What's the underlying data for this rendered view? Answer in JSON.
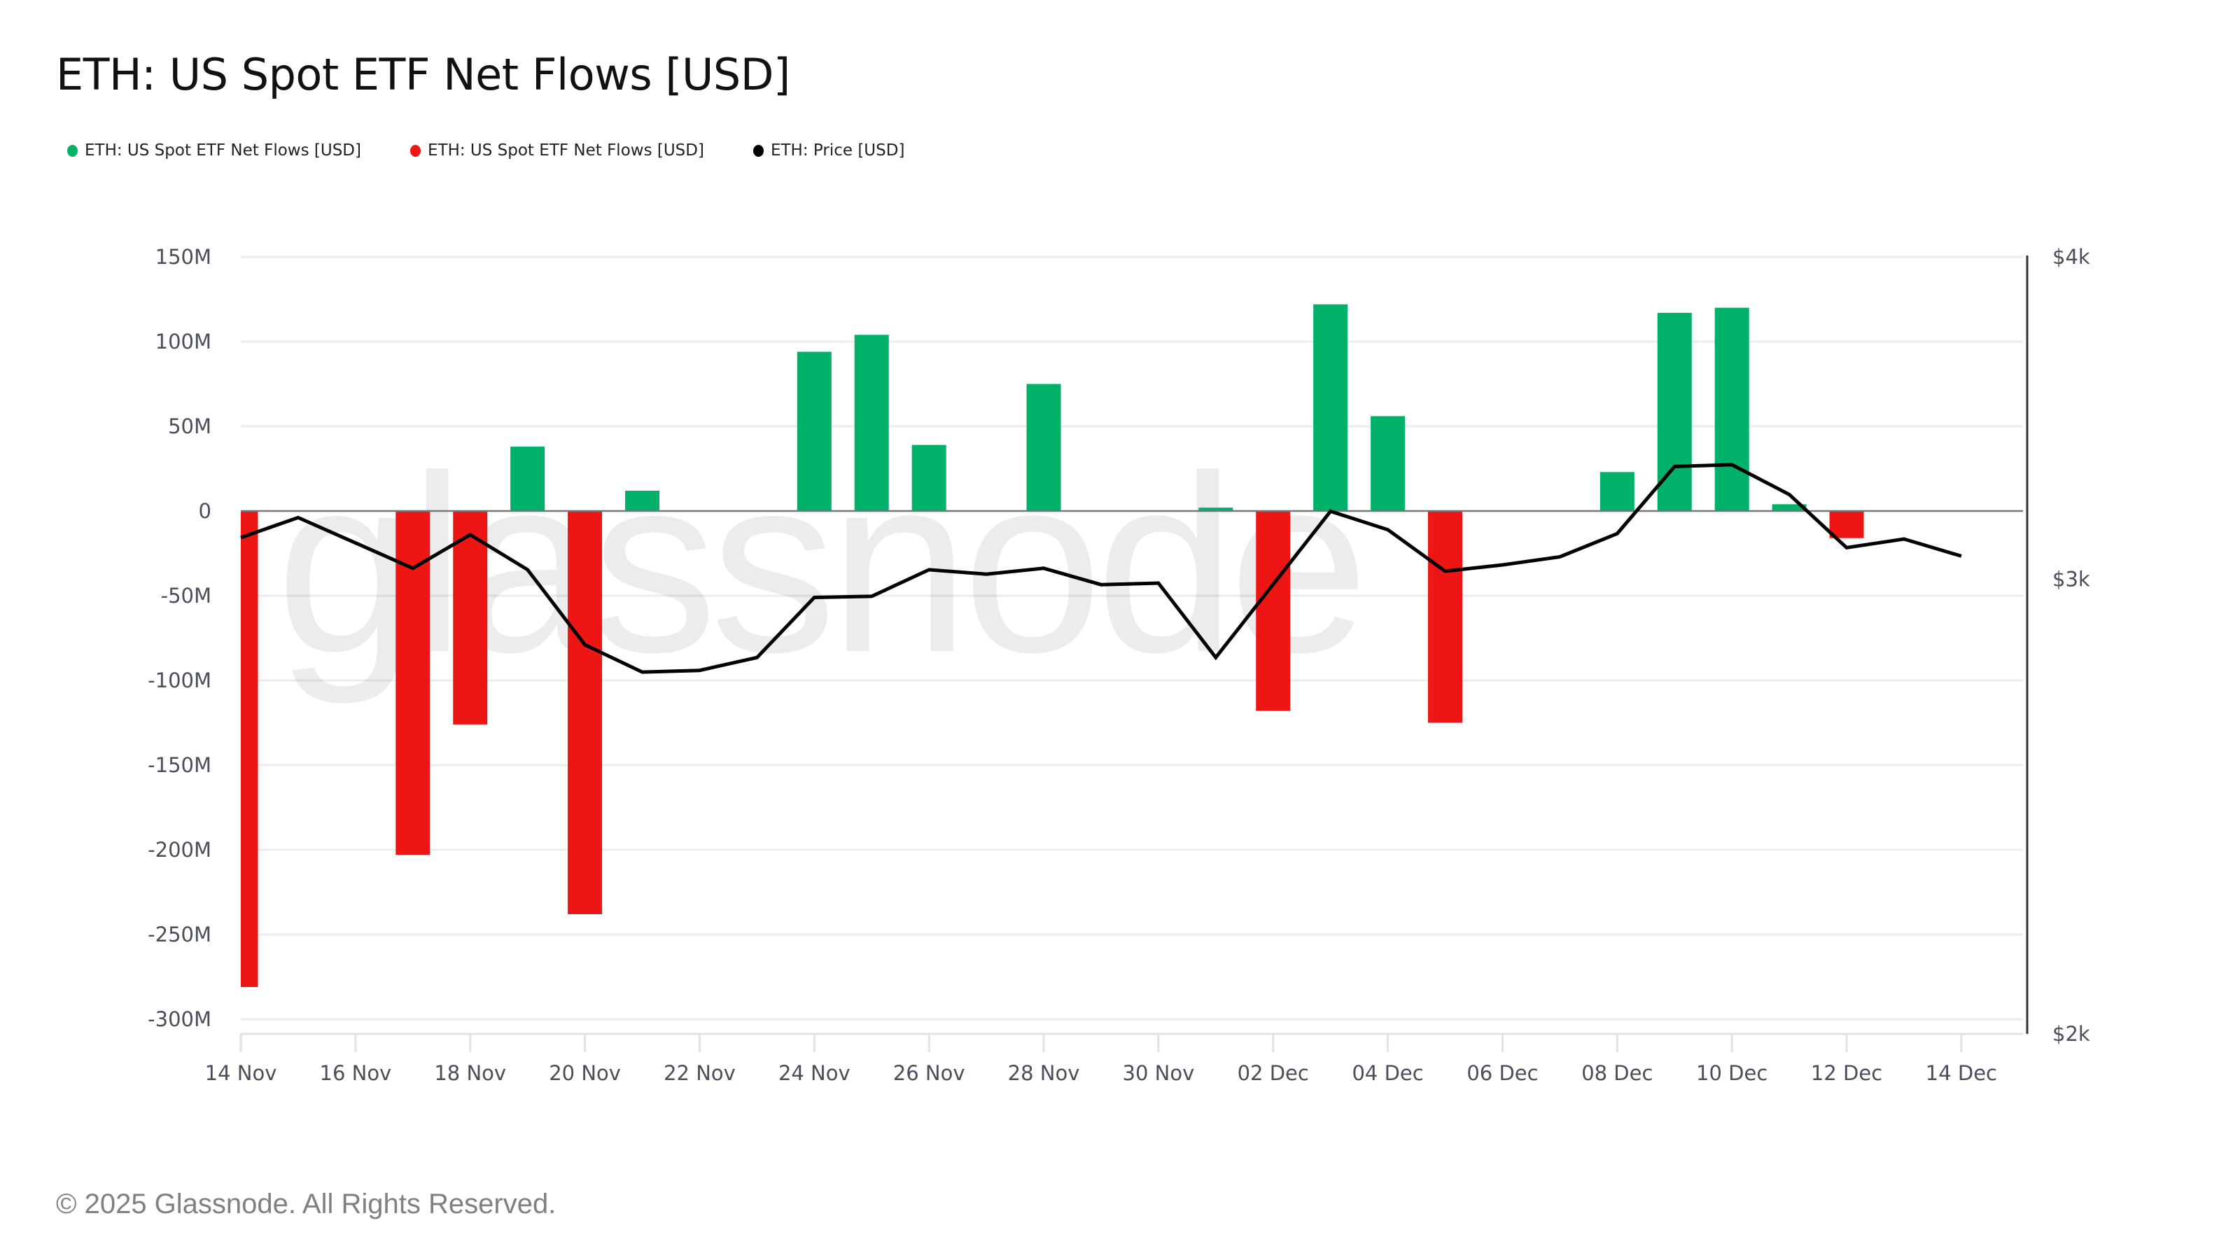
{
  "header": {
    "title": "ETH: US Spot ETF Net Flows [USD]"
  },
  "legend": [
    {
      "label": "ETH: US Spot ETF Net Flows [USD]",
      "color": "#00b16a",
      "icon": "dot-icon"
    },
    {
      "label": "ETH: US Spot ETF Net Flows [USD]",
      "color": "#ee1515",
      "icon": "dot-icon"
    },
    {
      "label": "ETH: Price [USD]",
      "color": "#000000",
      "icon": "dot-icon"
    }
  ],
  "watermark": "glassnode",
  "footer": {
    "copyright": "© 2025 Glassnode. All Rights Reserved."
  },
  "colors": {
    "positive": "#00b16a",
    "negative": "#ee1515",
    "price": "#000000",
    "grid": "#ececec",
    "axis_text": "#4a4e5a"
  },
  "chart_data": {
    "type": "bar",
    "title": "ETH: US Spot ETF Net Flows [USD]",
    "xlabel": "",
    "ylabel": "",
    "categories": [
      "14 Nov",
      "15 Nov",
      "16 Nov",
      "17 Nov",
      "18 Nov",
      "19 Nov",
      "20 Nov",
      "21 Nov",
      "22 Nov",
      "23 Nov",
      "24 Nov",
      "25 Nov",
      "26 Nov",
      "27 Nov",
      "28 Nov",
      "29 Nov",
      "30 Nov",
      "01 Dec",
      "02 Dec",
      "03 Dec",
      "04 Dec",
      "05 Dec",
      "06 Dec",
      "07 Dec",
      "08 Dec",
      "09 Dec",
      "10 Dec",
      "11 Dec",
      "12 Dec",
      "13 Dec",
      "14 Dec"
    ],
    "x_tick_labels": [
      "14 Nov",
      "16 Nov",
      "18 Nov",
      "20 Nov",
      "22 Nov",
      "24 Nov",
      "26 Nov",
      "28 Nov",
      "30 Nov",
      "02 Dec",
      "04 Dec",
      "06 Dec",
      "08 Dec",
      "10 Dec",
      "12 Dec",
      "14 Dec"
    ],
    "series": [
      {
        "name": "ETH: US Spot ETF Net Flows [USD]",
        "type": "bar",
        "axis": "left",
        "unit": "M USD",
        "values": [
          -281,
          0,
          0,
          -203,
          -126,
          38,
          -238,
          12,
          0,
          0,
          94,
          104,
          39,
          0,
          75,
          0,
          0,
          2,
          -118,
          122,
          56,
          -125,
          0,
          0,
          23,
          117,
          120,
          4,
          -16,
          0,
          0
        ]
      },
      {
        "name": "ETH: Price [USD]",
        "type": "line",
        "axis": "right",
        "scale": "log",
        "values": [
          3114,
          3170,
          null,
          3030,
          3122,
          3026,
          2830,
          2762,
          2766,
          2798,
          2952,
          2955,
          3026,
          3014,
          3030,
          2986,
          2990,
          2798,
          null,
          3188,
          3136,
          3022,
          3039,
          3061,
          3125,
          3318,
          3323,
          3236,
          3086,
          3110,
          3063
        ]
      }
    ],
    "left_axis": {
      "ticks": [
        150,
        100,
        50,
        0,
        -50,
        -100,
        -150,
        -200,
        -250,
        -300
      ],
      "tick_labels": [
        "150M",
        "100M",
        "50M",
        "0",
        "-50M",
        "-100M",
        "-150M",
        "-200M",
        "-250M",
        "-300M"
      ],
      "ylim": [
        -300,
        150
      ]
    },
    "right_axis": {
      "ticks": [
        4000,
        3000,
        2000
      ],
      "tick_labels": [
        "$4k",
        "$3k",
        "$2k"
      ],
      "ylim": [
        2000,
        4000
      ],
      "scale": "log"
    },
    "grid": true,
    "legend_position": "top-left"
  }
}
